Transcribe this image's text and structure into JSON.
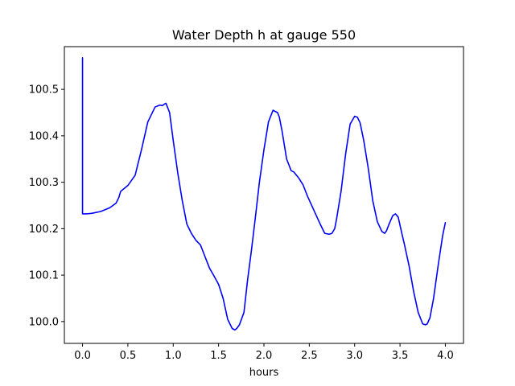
{
  "chart_data": {
    "type": "line",
    "title": "Water Depth h at gauge 550",
    "xlabel": "hours",
    "ylabel": "",
    "xlim": [
      -0.2,
      4.2
    ],
    "ylim": [
      99.953,
      100.592
    ],
    "xticks": [
      0.0,
      0.5,
      1.0,
      1.5,
      2.0,
      2.5,
      3.0,
      3.5,
      4.0
    ],
    "xtick_labels": [
      "0.0",
      "0.5",
      "1.0",
      "1.5",
      "2.0",
      "2.5",
      "3.0",
      "3.5",
      "4.0"
    ],
    "yticks": [
      100.0,
      100.1,
      100.2,
      100.3,
      100.4,
      100.5
    ],
    "ytick_labels": [
      "100.0",
      "100.1",
      "100.2",
      "100.3",
      "100.4",
      "100.5"
    ],
    "grid": false,
    "series": [
      {
        "color": "#0000ff",
        "x": [
          0.0,
          0.0,
          0.0,
          0.05,
          0.1,
          0.2,
          0.3,
          0.37,
          0.4,
          0.42,
          0.45,
          0.5,
          0.58,
          0.65,
          0.72,
          0.8,
          0.85,
          0.88,
          0.9,
          0.92,
          0.96,
          1.0,
          1.05,
          1.1,
          1.15,
          1.2,
          1.25,
          1.3,
          1.35,
          1.4,
          1.45,
          1.5,
          1.55,
          1.6,
          1.65,
          1.68,
          1.7,
          1.73,
          1.78,
          1.82,
          1.86,
          1.9,
          1.95,
          2.0,
          2.05,
          2.1,
          2.15,
          2.17,
          2.2,
          2.25,
          2.3,
          2.33,
          2.38,
          2.43,
          2.48,
          2.55,
          2.62,
          2.67,
          2.72,
          2.75,
          2.78,
          2.8,
          2.85,
          2.9,
          2.95,
          3.0,
          3.03,
          3.06,
          3.1,
          3.15,
          3.2,
          3.25,
          3.3,
          3.33,
          3.35,
          3.38,
          3.42,
          3.45,
          3.48,
          3.52,
          3.55,
          3.6,
          3.65,
          3.7,
          3.75,
          3.78,
          3.8,
          3.83,
          3.87,
          3.92,
          3.97,
          4.0
        ],
        "y": [
          100.232,
          100.568,
          100.232,
          100.232,
          100.233,
          100.237,
          100.245,
          100.255,
          100.267,
          100.28,
          100.285,
          100.293,
          100.315,
          100.37,
          100.43,
          100.462,
          100.466,
          100.465,
          100.468,
          100.47,
          100.45,
          100.39,
          100.32,
          100.26,
          100.21,
          100.19,
          100.175,
          100.165,
          100.14,
          100.115,
          100.098,
          100.08,
          100.05,
          100.005,
          99.985,
          99.982,
          99.985,
          99.993,
          100.02,
          100.09,
          100.15,
          100.215,
          100.3,
          100.37,
          100.43,
          100.455,
          100.45,
          100.44,
          100.41,
          100.35,
          100.325,
          100.322,
          100.31,
          100.295,
          100.27,
          100.24,
          100.21,
          100.19,
          100.188,
          100.19,
          100.2,
          100.22,
          100.28,
          100.36,
          100.425,
          100.442,
          100.44,
          100.428,
          100.39,
          100.33,
          100.26,
          100.215,
          100.194,
          100.19,
          100.195,
          100.21,
          100.228,
          100.232,
          100.225,
          100.19,
          100.165,
          100.12,
          100.065,
          100.02,
          99.995,
          99.993,
          99.995,
          100.008,
          100.05,
          100.12,
          100.185,
          100.213
        ]
      }
    ]
  }
}
